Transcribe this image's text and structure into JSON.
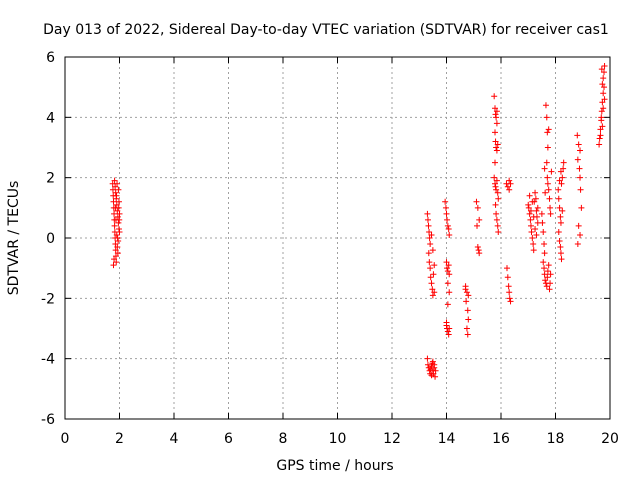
{
  "chart_data": {
    "type": "scatter",
    "title": "Day 013 of 2022, Sidereal Day-to-day VTEC variation (SDTVAR) for receiver cas1",
    "xlabel": "GPS time / hours",
    "ylabel": "SDTVAR / TECUs",
    "xlim": [
      0,
      20
    ],
    "ylim": [
      -6,
      6
    ],
    "xticks": [
      "0",
      "2",
      "4",
      "6",
      "8",
      "10",
      "12",
      "14",
      "16",
      "18",
      "20"
    ],
    "yticks": [
      "-6",
      "-4",
      "-2",
      "0",
      "2",
      "4",
      "6"
    ],
    "grid": true,
    "marker": "plus",
    "colors": {
      "points": "#ff0000",
      "grid": "#a0a0a0",
      "axes": "#000000"
    },
    "series": [
      {
        "points": [
          [
            1.75,
            1.8
          ],
          [
            1.76,
            1.6
          ],
          [
            1.77,
            1.4
          ],
          [
            1.78,
            1.2
          ],
          [
            1.79,
            1.0
          ],
          [
            1.8,
            0.8
          ],
          [
            1.81,
            0.6
          ],
          [
            1.82,
            0.4
          ],
          [
            1.83,
            0.2
          ],
          [
            1.84,
            0.0
          ],
          [
            1.85,
            -0.2
          ],
          [
            1.86,
            -0.4
          ],
          [
            1.87,
            -0.6
          ],
          [
            1.88,
            -0.8
          ],
          [
            1.78,
            -0.9
          ],
          [
            1.8,
            -0.7
          ],
          [
            1.82,
            1.9
          ],
          [
            1.84,
            1.7
          ],
          [
            1.86,
            1.5
          ],
          [
            1.88,
            1.3
          ],
          [
            1.9,
            1.1
          ],
          [
            1.92,
            0.9
          ],
          [
            1.94,
            0.7
          ],
          [
            1.96,
            0.5
          ],
          [
            1.98,
            0.3
          ],
          [
            1.9,
            0.1
          ],
          [
            1.92,
            -0.3
          ],
          [
            1.94,
            -0.5
          ],
          [
            1.96,
            1.6
          ],
          [
            1.98,
            1.2
          ],
          [
            2.0,
            0.8
          ],
          [
            2.0,
            0.2
          ],
          [
            1.85,
            1.0
          ],
          [
            1.87,
            0.6
          ],
          [
            1.89,
            1.4
          ],
          [
            1.91,
            1.8
          ],
          [
            1.93,
            0.0
          ],
          [
            1.95,
            -0.1
          ],
          [
            1.97,
            1.0
          ],
          [
            1.99,
            0.6
          ],
          [
            13.3,
            0.8
          ],
          [
            13.32,
            0.6
          ],
          [
            13.34,
            0.4
          ],
          [
            13.36,
            0.2
          ],
          [
            13.38,
            0.0
          ],
          [
            13.4,
            -0.2
          ],
          [
            13.35,
            -0.5
          ],
          [
            13.37,
            -0.8
          ],
          [
            13.4,
            -1.0
          ],
          [
            13.42,
            -1.3
          ],
          [
            13.45,
            -1.5
          ],
          [
            13.48,
            -1.7
          ],
          [
            13.5,
            -1.9
          ],
          [
            13.52,
            -1.2
          ],
          [
            13.55,
            -0.9
          ],
          [
            13.45,
            0.1
          ],
          [
            13.5,
            -0.4
          ],
          [
            13.55,
            -1.8
          ],
          [
            13.3,
            -4.0
          ],
          [
            13.32,
            -4.2
          ],
          [
            13.35,
            -4.3
          ],
          [
            13.38,
            -4.4
          ],
          [
            13.4,
            -4.5
          ],
          [
            13.42,
            -4.35
          ],
          [
            13.45,
            -4.25
          ],
          [
            13.48,
            -4.15
          ],
          [
            13.5,
            -4.4
          ],
          [
            13.52,
            -4.5
          ],
          [
            13.55,
            -4.3
          ],
          [
            13.58,
            -4.6
          ],
          [
            13.6,
            -4.4
          ],
          [
            13.5,
            -4.1
          ],
          [
            13.45,
            -4.55
          ],
          [
            13.55,
            -4.2
          ],
          [
            13.95,
            1.2
          ],
          [
            13.98,
            1.0
          ],
          [
            14.0,
            0.8
          ],
          [
            14.02,
            0.6
          ],
          [
            14.05,
            0.4
          ],
          [
            14.08,
            0.3
          ],
          [
            14.1,
            0.1
          ],
          [
            14.0,
            -0.8
          ],
          [
            14.02,
            -1.0
          ],
          [
            14.05,
            -1.1
          ],
          [
            14.08,
            -0.9
          ],
          [
            14.1,
            -1.2
          ],
          [
            14.05,
            -1.5
          ],
          [
            14.0,
            -2.8
          ],
          [
            14.02,
            -3.0
          ],
          [
            14.05,
            -3.1
          ],
          [
            14.08,
            -3.2
          ],
          [
            14.1,
            -3.0
          ],
          [
            14.0,
            -2.9
          ],
          [
            14.1,
            -1.8
          ],
          [
            14.05,
            -2.2
          ],
          [
            14.7,
            -1.6
          ],
          [
            14.75,
            -1.8
          ],
          [
            14.8,
            -1.9
          ],
          [
            14.72,
            -2.1
          ],
          [
            14.78,
            -2.4
          ],
          [
            14.8,
            -2.7
          ],
          [
            14.75,
            -3.0
          ],
          [
            14.78,
            -3.2
          ],
          [
            14.7,
            -1.7
          ],
          [
            15.1,
            1.2
          ],
          [
            15.15,
            1.0
          ],
          [
            15.2,
            0.6
          ],
          [
            15.12,
            0.4
          ],
          [
            15.15,
            -0.3
          ],
          [
            15.18,
            -0.4
          ],
          [
            15.2,
            -0.5
          ],
          [
            15.75,
            4.7
          ],
          [
            15.78,
            4.3
          ],
          [
            15.8,
            4.1
          ],
          [
            15.82,
            4.0
          ],
          [
            15.85,
            3.8
          ],
          [
            15.78,
            3.5
          ],
          [
            15.8,
            3.2
          ],
          [
            15.82,
            3.0
          ],
          [
            15.85,
            2.9
          ],
          [
            15.88,
            3.1
          ],
          [
            15.75,
            2.0
          ],
          [
            15.78,
            1.8
          ],
          [
            15.8,
            1.7
          ],
          [
            15.82,
            1.6
          ],
          [
            15.85,
            1.9
          ],
          [
            15.88,
            1.5
          ],
          [
            15.8,
            1.1
          ],
          [
            15.82,
            0.8
          ],
          [
            15.85,
            0.6
          ],
          [
            15.88,
            0.4
          ],
          [
            15.9,
            0.2
          ],
          [
            15.78,
            2.5
          ],
          [
            15.85,
            4.2
          ],
          [
            15.9,
            1.3
          ],
          [
            16.2,
            1.8
          ],
          [
            16.25,
            1.7
          ],
          [
            16.3,
            1.9
          ],
          [
            16.35,
            1.8
          ],
          [
            16.22,
            -1.0
          ],
          [
            16.25,
            -1.3
          ],
          [
            16.28,
            -1.6
          ],
          [
            16.3,
            -1.8
          ],
          [
            16.32,
            -2.0
          ],
          [
            16.35,
            -2.1
          ],
          [
            16.3,
            1.6
          ],
          [
            17.0,
            1.1
          ],
          [
            17.02,
            1.0
          ],
          [
            17.05,
            0.8
          ],
          [
            17.08,
            0.6
          ],
          [
            17.1,
            0.4
          ],
          [
            17.12,
            0.2
          ],
          [
            17.15,
            0.0
          ],
          [
            17.18,
            -0.2
          ],
          [
            17.2,
            -0.4
          ],
          [
            17.22,
            1.2
          ],
          [
            17.25,
            1.5
          ],
          [
            17.28,
            1.3
          ],
          [
            17.3,
            0.9
          ],
          [
            17.32,
            0.7
          ],
          [
            17.35,
            0.5
          ],
          [
            17.05,
            1.4
          ],
          [
            17.1,
            0.9
          ],
          [
            17.15,
            1.2
          ],
          [
            17.2,
            0.7
          ],
          [
            17.25,
            0.3
          ],
          [
            17.3,
            0.1
          ],
          [
            17.35,
            1.0
          ],
          [
            17.5,
            0.8
          ],
          [
            17.52,
            0.5
          ],
          [
            17.55,
            0.2
          ],
          [
            17.58,
            -0.2
          ],
          [
            17.6,
            -0.5
          ],
          [
            17.55,
            -0.8
          ],
          [
            17.58,
            -1.0
          ],
          [
            17.6,
            -1.2
          ],
          [
            17.62,
            -1.4
          ],
          [
            17.65,
            -1.5
          ],
          [
            17.68,
            -1.6
          ],
          [
            17.7,
            -1.3
          ],
          [
            17.72,
            -1.1
          ],
          [
            17.75,
            -0.9
          ],
          [
            17.78,
            -1.7
          ],
          [
            17.8,
            -1.5
          ],
          [
            17.82,
            -1.2
          ],
          [
            17.65,
            4.4
          ],
          [
            17.68,
            4.0
          ],
          [
            17.7,
            3.5
          ],
          [
            17.72,
            3.0
          ],
          [
            17.68,
            2.5
          ],
          [
            17.7,
            2.0
          ],
          [
            17.72,
            1.8
          ],
          [
            17.75,
            1.6
          ],
          [
            17.78,
            1.3
          ],
          [
            17.8,
            1.0
          ],
          [
            17.82,
            0.8
          ],
          [
            17.85,
            2.2
          ],
          [
            17.75,
            3.6
          ],
          [
            17.62,
            1.5
          ],
          [
            17.6,
            2.3
          ],
          [
            18.1,
            1.6
          ],
          [
            18.12,
            1.3
          ],
          [
            18.15,
            1.0
          ],
          [
            18.18,
            0.7
          ],
          [
            18.2,
            0.5
          ],
          [
            18.12,
            0.2
          ],
          [
            18.15,
            -0.1
          ],
          [
            18.18,
            -0.3
          ],
          [
            18.2,
            -0.5
          ],
          [
            18.22,
            -0.7
          ],
          [
            18.25,
            2.0
          ],
          [
            18.28,
            2.3
          ],
          [
            18.3,
            2.5
          ],
          [
            18.22,
            1.8
          ],
          [
            18.25,
            0.9
          ],
          [
            18.15,
            1.9
          ],
          [
            18.2,
            2.2
          ],
          [
            18.8,
            3.4
          ],
          [
            18.85,
            3.1
          ],
          [
            18.9,
            2.9
          ],
          [
            18.82,
            2.6
          ],
          [
            18.88,
            2.3
          ],
          [
            18.85,
            0.4
          ],
          [
            18.9,
            0.1
          ],
          [
            18.82,
            -0.2
          ],
          [
            18.9,
            2.0
          ],
          [
            18.92,
            1.6
          ],
          [
            18.95,
            1.0
          ],
          [
            19.6,
            3.1
          ],
          [
            19.62,
            3.3
          ],
          [
            19.65,
            3.6
          ],
          [
            19.68,
            3.9
          ],
          [
            19.7,
            4.2
          ],
          [
            19.72,
            4.5
          ],
          [
            19.75,
            4.8
          ],
          [
            19.72,
            5.1
          ],
          [
            19.75,
            5.3
          ],
          [
            19.78,
            5.5
          ],
          [
            19.8,
            5.7
          ],
          [
            19.7,
            5.6
          ],
          [
            19.68,
            4.0
          ],
          [
            19.72,
            3.7
          ],
          [
            19.75,
            4.3
          ],
          [
            19.78,
            5.0
          ],
          [
            19.8,
            4.6
          ],
          [
            19.65,
            3.4
          ]
        ]
      }
    ]
  }
}
